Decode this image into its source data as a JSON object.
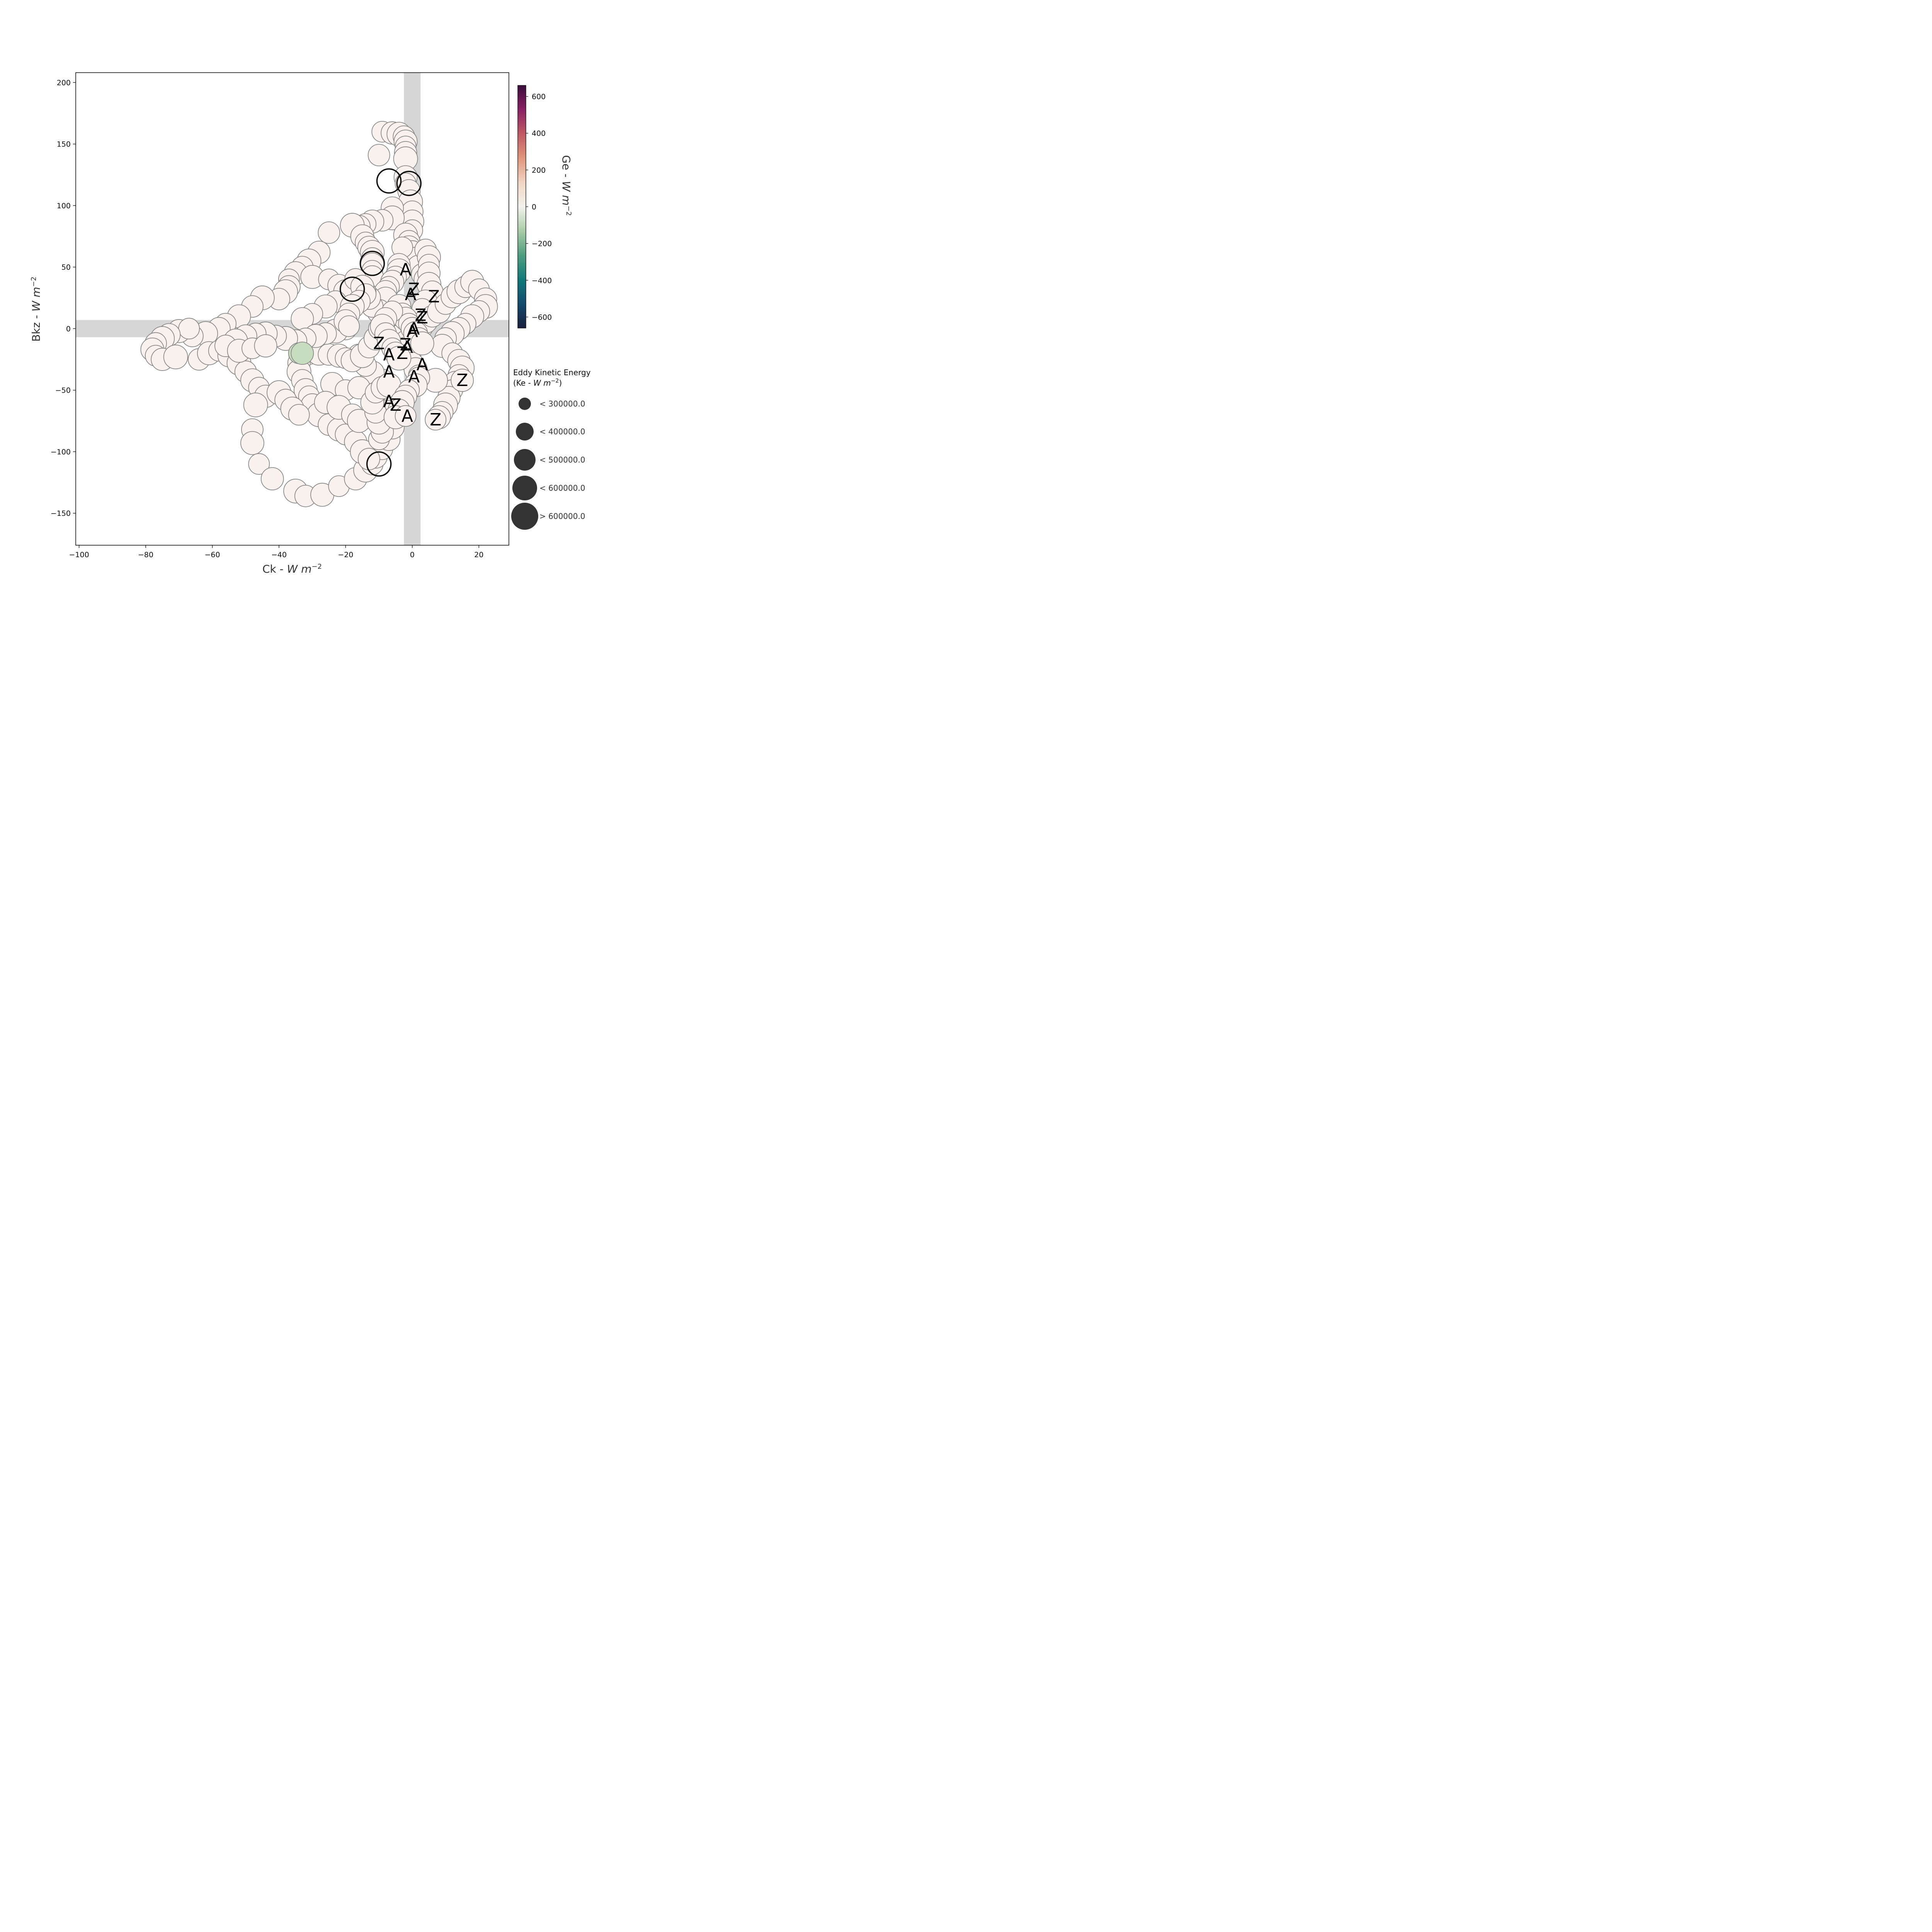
{
  "chart_data": {
    "type": "scatter",
    "xlabel": "Ck - W m^-2",
    "ylabel": "Bkz - W m^-2",
    "xlim": [
      -101,
      29
    ],
    "ylim": [
      -176,
      208
    ],
    "x_ticks": [
      -100,
      -80,
      -60,
      -40,
      -20,
      0,
      20
    ],
    "y_ticks": [
      -150,
      -100,
      -50,
      0,
      50,
      100,
      150,
      200
    ],
    "x_tick_labels": [
      "−100",
      "−80",
      "−60",
      "−40",
      "−20",
      "0",
      "20"
    ],
    "y_tick_labels": [
      "−150",
      "−100",
      "−50",
      "0",
      "50",
      "100",
      "150",
      "200"
    ],
    "zero_bands": {
      "x_halfwidth": 2.5,
      "y_halfwidth": 7,
      "color": "#d6d6d6"
    },
    "grid": false,
    "colorbar": {
      "label": "Ge - W m^-2",
      "range": [
        -660,
        660
      ],
      "ticks": [
        600,
        400,
        200,
        0,
        -200,
        -400,
        -600
      ],
      "tick_labels": [
        "600",
        "400",
        "200",
        "0",
        "−200",
        "−400",
        "−600"
      ],
      "colormap": [
        "#1a1f3d",
        "#144a6b",
        "#0f7a7a",
        "#4f9e80",
        "#a9cca6",
        "#f2f2ec",
        "#f2d5c4",
        "#e0967d",
        "#c05a63",
        "#8a2065",
        "#3a0f3b"
      ]
    },
    "size_legend": {
      "title_line1": "Eddy Kinetic Energy",
      "title_line2": "(Ke - W m^-2)",
      "position": "right",
      "marker_color": "#333333",
      "entries": [
        {
          "label": "< 300000.0",
          "size_rank": 1
        },
        {
          "label": "< 400000.0",
          "size_rank": 2
        },
        {
          "label": "< 500000.0",
          "size_rank": 3
        },
        {
          "label": "< 600000.0",
          "size_rank": 4
        },
        {
          "label": "> 600000.0",
          "size_rank": 5
        }
      ]
    },
    "series": [
      {
        "marker": "circle",
        "fill": "#f8f1ee",
        "edge": "#888888",
        "points": [
          [
            -9,
            160
          ],
          [
            -6,
            159
          ],
          [
            -4,
            158
          ],
          [
            -2.5,
            156
          ],
          [
            -2,
            152
          ],
          [
            -2,
            148
          ],
          [
            -2,
            143
          ],
          [
            -2,
            138
          ],
          [
            -10,
            141
          ],
          [
            -2,
            123
          ],
          [
            -2,
            118
          ],
          [
            -1,
            112
          ],
          [
            -0.5,
            103
          ],
          [
            0,
            95
          ],
          [
            0,
            87
          ],
          [
            0,
            80
          ],
          [
            -6,
            98
          ],
          [
            -6,
            90
          ],
          [
            -9,
            88
          ],
          [
            -12,
            87
          ],
          [
            -14,
            85
          ],
          [
            -16,
            83
          ],
          [
            -18,
            84
          ],
          [
            -25,
            78
          ],
          [
            -15,
            75
          ],
          [
            -14,
            70
          ],
          [
            -13,
            66
          ],
          [
            -12,
            62
          ],
          [
            -12,
            57
          ],
          [
            -12,
            52
          ],
          [
            -12,
            47
          ],
          [
            -12,
            42
          ],
          [
            -2,
            76
          ],
          [
            -1,
            71
          ],
          [
            -1,
            66
          ],
          [
            0,
            63
          ],
          [
            1,
            57
          ],
          [
            2,
            50
          ],
          [
            3,
            44
          ],
          [
            4,
            40
          ],
          [
            -3,
            66
          ],
          [
            -4,
            52
          ],
          [
            -4,
            47
          ],
          [
            -5,
            42
          ],
          [
            -6,
            38
          ],
          [
            -7,
            34
          ],
          [
            -8,
            30
          ],
          [
            -8,
            24
          ],
          [
            4,
            64
          ],
          [
            5,
            58
          ],
          [
            5,
            52
          ],
          [
            5,
            45
          ],
          [
            5,
            36
          ],
          [
            6,
            30
          ],
          [
            4,
            22
          ],
          [
            3,
            16
          ],
          [
            -28,
            62
          ],
          [
            -31,
            55
          ],
          [
            -33,
            50
          ],
          [
            -35,
            45
          ],
          [
            -37,
            40
          ],
          [
            -37,
            34
          ],
          [
            -38,
            30
          ],
          [
            -40,
            24
          ],
          [
            -30,
            42
          ],
          [
            -25,
            40
          ],
          [
            -22,
            35
          ],
          [
            -20,
            30
          ],
          [
            -23,
            22
          ],
          [
            -26,
            18
          ],
          [
            -30,
            12
          ],
          [
            -33,
            8
          ],
          [
            -45,
            25
          ],
          [
            -48,
            18
          ],
          [
            -52,
            10
          ],
          [
            -56,
            4
          ],
          [
            -58,
            0
          ],
          [
            -62,
            -4
          ],
          [
            -66,
            -6
          ],
          [
            -70,
            -2
          ],
          [
            -67,
            0
          ],
          [
            -73,
            -5
          ],
          [
            -75,
            -8
          ],
          [
            -77,
            -12
          ],
          [
            -78,
            -17
          ],
          [
            -77,
            -22
          ],
          [
            -75,
            -25
          ],
          [
            -71,
            -23
          ],
          [
            -64,
            -25
          ],
          [
            -61,
            -20
          ],
          [
            -58,
            -18
          ],
          [
            -55,
            -22
          ],
          [
            -52,
            -28
          ],
          [
            -50,
            -35
          ],
          [
            -48,
            -42
          ],
          [
            -46,
            -48
          ],
          [
            -44,
            -55
          ],
          [
            -47,
            -62
          ],
          [
            -48,
            -82
          ],
          [
            -48,
            -93
          ],
          [
            -46,
            -110
          ],
          [
            -42,
            -122
          ],
          [
            -35,
            -132
          ],
          [
            -32,
            -136
          ],
          [
            -27,
            -135
          ],
          [
            -22,
            -128
          ],
          [
            -17,
            -122
          ],
          [
            -14,
            -115
          ],
          [
            -12,
            -110
          ],
          [
            -11,
            -104
          ],
          [
            -9,
            -98
          ],
          [
            -7,
            -90
          ],
          [
            -6,
            -80
          ],
          [
            -6,
            -70
          ],
          [
            -5,
            -60
          ],
          [
            -7,
            -50
          ],
          [
            -9,
            -42
          ],
          [
            -12,
            -36
          ],
          [
            -14,
            -30
          ],
          [
            -16,
            -22
          ],
          [
            -34,
            -20
          ],
          [
            -31,
            -20
          ],
          [
            -28,
            -20
          ],
          [
            -25,
            -21
          ],
          [
            -22,
            -22
          ],
          [
            -20,
            -24
          ],
          [
            -18,
            -26
          ],
          [
            -15,
            -22
          ],
          [
            -13,
            -15
          ],
          [
            -11,
            -8
          ],
          [
            -10,
            0
          ],
          [
            -9,
            8
          ],
          [
            -10,
            14
          ],
          [
            -12,
            18
          ],
          [
            -13,
            25
          ],
          [
            -14,
            30
          ],
          [
            -34,
            -28
          ],
          [
            -34,
            -35
          ],
          [
            -33,
            -42
          ],
          [
            -32,
            -50
          ],
          [
            -31,
            -55
          ],
          [
            -30,
            -62
          ],
          [
            -28,
            -70
          ],
          [
            -25,
            -78
          ],
          [
            -22,
            -82
          ],
          [
            -20,
            -86
          ],
          [
            -17,
            -92
          ],
          [
            -15,
            -100
          ],
          [
            -13,
            -106
          ],
          [
            -24,
            -45
          ],
          [
            -20,
            -50
          ],
          [
            -16,
            -48
          ],
          [
            -40,
            -52
          ],
          [
            -38,
            -58
          ],
          [
            -36,
            -65
          ],
          [
            -34,
            -70
          ],
          [
            -26,
            -60
          ],
          [
            -22,
            -64
          ],
          [
            -18,
            -70
          ],
          [
            -16,
            -75
          ],
          [
            -10,
            -90
          ],
          [
            -9,
            -84
          ],
          [
            -10,
            -76
          ],
          [
            -11,
            -68
          ],
          [
            -12,
            -60
          ],
          [
            -11,
            -52
          ],
          [
            -9,
            -48
          ],
          [
            -7,
            -46
          ],
          [
            -5,
            0
          ],
          [
            -3,
            -5
          ],
          [
            -2,
            -10
          ],
          [
            -2,
            -16
          ],
          [
            -1,
            -22
          ],
          [
            0,
            -28
          ],
          [
            1,
            -33
          ],
          [
            2,
            -38
          ],
          [
            3,
            2
          ],
          [
            4,
            6
          ],
          [
            6,
            10
          ],
          [
            8,
            14
          ],
          [
            10,
            20
          ],
          [
            12,
            26
          ],
          [
            14,
            30
          ],
          [
            16,
            34
          ],
          [
            18,
            38
          ],
          [
            20,
            32
          ],
          [
            22,
            24
          ],
          [
            22,
            18
          ],
          [
            20,
            14
          ],
          [
            18,
            10
          ],
          [
            16,
            4
          ],
          [
            14,
            0
          ],
          [
            12,
            -4
          ],
          [
            10,
            -8
          ],
          [
            9,
            -14
          ],
          [
            12,
            -20
          ],
          [
            14,
            -26
          ],
          [
            15,
            -32
          ],
          [
            14,
            -38
          ],
          [
            13,
            -44
          ],
          [
            12,
            -50
          ],
          [
            11,
            -56
          ],
          [
            10,
            -62
          ],
          [
            9,
            -68
          ],
          [
            8,
            -72
          ],
          [
            7,
            -74
          ],
          [
            15,
            -42
          ],
          [
            7,
            -42
          ],
          [
            2,
            -40
          ],
          [
            1,
            -46
          ],
          [
            -1,
            -50
          ],
          [
            -2,
            -55
          ],
          [
            -3,
            -60
          ],
          [
            -4,
            -66
          ],
          [
            -5,
            -72
          ],
          [
            -2,
            -71
          ],
          [
            -20,
            0
          ],
          [
            -23,
            -2
          ],
          [
            -26,
            -4
          ],
          [
            -29,
            -6
          ],
          [
            -32,
            -8
          ],
          [
            -35,
            -10
          ],
          [
            -38,
            -8
          ],
          [
            -41,
            -6
          ],
          [
            -44,
            -4
          ],
          [
            -47,
            -4
          ],
          [
            -50,
            -6
          ],
          [
            -53,
            -10
          ],
          [
            -56,
            -14
          ],
          [
            -52,
            -18
          ],
          [
            -48,
            -16
          ],
          [
            -44,
            -14
          ],
          [
            -4,
            18
          ],
          [
            -3,
            12
          ],
          [
            -2,
            8
          ],
          [
            -1,
            4
          ],
          [
            0,
            0
          ],
          [
            1,
            -4
          ],
          [
            2,
            -8
          ],
          [
            3,
            -12
          ],
          [
            -6,
            14
          ],
          [
            -8,
            8
          ],
          [
            -9,
            2
          ],
          [
            -8,
            -4
          ],
          [
            -7,
            -10
          ],
          [
            -6,
            -16
          ],
          [
            -5,
            -20
          ],
          [
            -4,
            -24
          ],
          [
            -17,
            40
          ],
          [
            -15,
            34
          ],
          [
            -14,
            28
          ],
          [
            -16,
            22
          ],
          [
            -18,
            18
          ],
          [
            -19,
            12
          ],
          [
            -20,
            6
          ],
          [
            -19,
            2
          ]
        ]
      },
      {
        "marker": "circle",
        "fill": "#c8dcc0",
        "edge": "#888888",
        "points": [
          [
            -34,
            -20
          ],
          [
            -33,
            -20
          ]
        ]
      },
      {
        "marker": "circle",
        "fill": "none",
        "edge": "#111111",
        "points": [
          [
            -7,
            120
          ],
          [
            -12,
            53
          ],
          [
            -10,
            -110
          ],
          [
            -18,
            32
          ],
          [
            -1,
            118
          ]
        ]
      }
    ],
    "annotations": [
      {
        "text": "A",
        "x": -2,
        "y": 48
      },
      {
        "text": "A",
        "x": -0.5,
        "y": 28
      },
      {
        "text": "Z",
        "x": 0.5,
        "y": 32
      },
      {
        "text": "Z",
        "x": 6.5,
        "y": 26
      },
      {
        "text": "Z",
        "x": 2.5,
        "y": 11
      },
      {
        "text": "Z",
        "x": 3,
        "y": 9
      },
      {
        "text": "A",
        "x": 0.5,
        "y": 0
      },
      {
        "text": "A",
        "x": 0,
        "y": -2
      },
      {
        "text": "Z",
        "x": -10,
        "y": -12
      },
      {
        "text": "Z",
        "x": -2,
        "y": -13
      },
      {
        "text": "A",
        "x": -1.5,
        "y": -15
      },
      {
        "text": "A",
        "x": -7,
        "y": -21
      },
      {
        "text": "Z",
        "x": -3,
        "y": -20
      },
      {
        "text": "A",
        "x": 3,
        "y": -29
      },
      {
        "text": "A",
        "x": -7,
        "y": -35
      },
      {
        "text": "A",
        "x": 0.5,
        "y": -39
      },
      {
        "text": "Z",
        "x": 15,
        "y": -42
      },
      {
        "text": "A",
        "x": -7,
        "y": -59
      },
      {
        "text": "Z",
        "x": -5,
        "y": -62
      },
      {
        "text": "A",
        "x": -1.5,
        "y": -71
      },
      {
        "text": "Z",
        "x": 7,
        "y": -74
      }
    ]
  }
}
